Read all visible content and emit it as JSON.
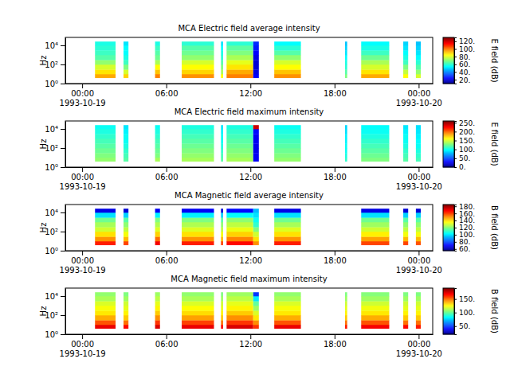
{
  "chart_data": [
    {
      "type": "heatmap",
      "title": "MCA  Electric field average intensity",
      "ylabel": "Hz",
      "log": "y",
      "xlim": [
        "1993-10-18T22:48",
        "1993-10-20T01:00"
      ],
      "xticks": [
        {
          "value": "1993-10-19T00:00",
          "label": "00:00\n1993-10-19"
        },
        {
          "value": "1993-10-19T06:00",
          "label": "06:00"
        },
        {
          "value": "1993-10-19T12:00",
          "label": "12:00"
        },
        {
          "value": "1993-10-19T18:00",
          "label": "18:00"
        },
        {
          "value": "1993-10-20T00:00",
          "label": "00:00\n1993-10-20"
        }
      ],
      "ylim": [
        1,
        68000
      ],
      "yticks": [
        {
          "value": 1,
          "label": "10⁰"
        },
        {
          "value": 100,
          "label": "10²"
        },
        {
          "value": 10000,
          "label": "10⁴"
        }
      ],
      "x_start": [
        "1993-10-19T00:55",
        "1993-10-19T02:57",
        "1993-10-19T05:12",
        "1993-10-19T07:06",
        "1993-10-19T09:54",
        "1993-10-19T10:18",
        "1993-10-19T12:12",
        "1993-10-19T13:42",
        "1993-10-19T18:45",
        "1993-10-19T19:54",
        "1993-10-19T22:54",
        "1993-10-19T23:48"
      ],
      "x_end": [
        "1993-10-19T02:23",
        "1993-10-19T03:18",
        "1993-10-19T05:33",
        "1993-10-19T09:24",
        "1993-10-19T10:03",
        "1993-10-19T12:12",
        "1993-10-19T12:36",
        "1993-10-19T15:36",
        "1993-10-19T18:54",
        "1993-10-19T21:54",
        "1993-10-19T23:15",
        "1993-10-20T00:09"
      ],
      "y_edges": [
        4,
        10,
        30,
        100,
        300,
        1000,
        3000,
        10000,
        25000
      ],
      "values": [
        [
          95,
          90,
          100,
          98,
          85,
          100,
          25,
          98,
          70,
          95,
          85,
          80
        ],
        [
          88,
          80,
          92,
          90,
          75,
          95,
          22,
          92,
          65,
          88,
          78,
          72
        ],
        [
          80,
          70,
          85,
          85,
          70,
          88,
          20,
          85,
          60,
          80,
          70,
          65
        ],
        [
          72,
          62,
          75,
          80,
          65,
          82,
          20,
          80,
          58,
          75,
          62,
          60
        ],
        [
          65,
          58,
          68,
          72,
          60,
          75,
          22,
          72,
          55,
          68,
          58,
          55
        ],
        [
          62,
          55,
          65,
          68,
          58,
          70,
          25,
          65,
          52,
          62,
          55,
          52
        ],
        [
          60,
          55,
          62,
          65,
          55,
          66,
          28,
          60,
          50,
          58,
          52,
          50
        ],
        [
          58,
          52,
          58,
          60,
          52,
          60,
          30,
          55,
          48,
          55,
          50,
          48
        ]
      ],
      "colorbar": {
        "label": "E field (dB)",
        "range": [
          10,
          130
        ],
        "ticks": [
          {
            "value": 20,
            "label": "20."
          },
          {
            "value": 40,
            "label": "40."
          },
          {
            "value": 60,
            "label": "60."
          },
          {
            "value": 80,
            "label": "80."
          },
          {
            "value": 100,
            "label": "100."
          },
          {
            "value": 120,
            "label": "120."
          }
        ]
      }
    },
    {
      "type": "heatmap",
      "title": "MCA  Electric field maximum intensity",
      "ylabel": "Hz",
      "log": "y",
      "xlim": [
        "1993-10-18T22:48",
        "1993-10-20T01:00"
      ],
      "xticks": [
        {
          "value": "1993-10-19T00:00",
          "label": "00:00\n1993-10-19"
        },
        {
          "value": "1993-10-19T06:00",
          "label": "06:00"
        },
        {
          "value": "1993-10-19T12:00",
          "label": "12:00"
        },
        {
          "value": "1993-10-19T18:00",
          "label": "18:00"
        },
        {
          "value": "1993-10-20T00:00",
          "label": "00:00\n1993-10-20"
        }
      ],
      "ylim": [
        1,
        68000
      ],
      "yticks": [
        {
          "value": 1,
          "label": "10⁰"
        },
        {
          "value": 100,
          "label": "10²"
        },
        {
          "value": 10000,
          "label": "10⁴"
        }
      ],
      "x_start": [
        "1993-10-19T00:55",
        "1993-10-19T02:57",
        "1993-10-19T05:12",
        "1993-10-19T07:06",
        "1993-10-19T09:54",
        "1993-10-19T10:18",
        "1993-10-19T12:12",
        "1993-10-19T13:42",
        "1993-10-19T18:45",
        "1993-10-19T19:54",
        "1993-10-19T22:54",
        "1993-10-19T23:48"
      ],
      "x_end": [
        "1993-10-19T02:23",
        "1993-10-19T03:18",
        "1993-10-19T05:33",
        "1993-10-19T09:24",
        "1993-10-19T10:03",
        "1993-10-19T12:12",
        "1993-10-19T12:36",
        "1993-10-19T15:36",
        "1993-10-19T18:54",
        "1993-10-19T21:54",
        "1993-10-19T23:15",
        "1993-10-20T00:09"
      ],
      "y_edges": [
        4,
        10,
        30,
        100,
        300,
        1000,
        3000,
        10000,
        25000
      ],
      "values": [
        [
          135,
          120,
          140,
          140,
          120,
          140,
          30,
          135,
          110,
          130,
          120,
          115
        ],
        [
          130,
          115,
          130,
          135,
          115,
          135,
          30,
          130,
          105,
          125,
          115,
          110
        ],
        [
          125,
          110,
          125,
          130,
          110,
          130,
          28,
          125,
          100,
          120,
          110,
          105
        ],
        [
          120,
          105,
          120,
          125,
          105,
          125,
          28,
          120,
          100,
          115,
          105,
          100
        ],
        [
          115,
          100,
          115,
          120,
          100,
          120,
          30,
          115,
          95,
          110,
          100,
          98
        ],
        [
          110,
          100,
          110,
          115,
          100,
          115,
          30,
          110,
          95,
          105,
          100,
          95
        ],
        [
          105,
          95,
          105,
          110,
          95,
          110,
          35,
          105,
          90,
          100,
          95,
          92
        ],
        [
          100,
          92,
          100,
          105,
          92,
          105,
          240,
          100,
          88,
          98,
          92,
          90
        ]
      ],
      "colorbar": {
        "label": "E field (dB)",
        "range": [
          0,
          260
        ],
        "ticks": [
          {
            "value": 0,
            "label": "0."
          },
          {
            "value": 50,
            "label": "50."
          },
          {
            "value": 100,
            "label": "100."
          },
          {
            "value": 150,
            "label": "150."
          },
          {
            "value": 200,
            "label": "200."
          },
          {
            "value": 250,
            "label": "250."
          }
        ]
      }
    },
    {
      "type": "heatmap",
      "title": "MCA  Magnetic field average intensity",
      "ylabel": "Hz",
      "log": "y",
      "xlim": [
        "1993-10-18T22:48",
        "1993-10-20T01:00"
      ],
      "xticks": [
        {
          "value": "1993-10-19T00:00",
          "label": "00:00\n1993-10-19"
        },
        {
          "value": "1993-10-19T06:00",
          "label": "06:00"
        },
        {
          "value": "1993-10-19T12:00",
          "label": "12:00"
        },
        {
          "value": "1993-10-19T18:00",
          "label": "18:00"
        },
        {
          "value": "1993-10-20T00:00",
          "label": "00:00\n1993-10-20"
        }
      ],
      "ylim": [
        1,
        68000
      ],
      "yticks": [
        {
          "value": 1,
          "label": "10⁰"
        },
        {
          "value": 100,
          "label": "10²"
        },
        {
          "value": 10000,
          "label": "10⁴"
        }
      ],
      "x_start": [
        "1993-10-19T00:55",
        "1993-10-19T02:57",
        "1993-10-19T05:12",
        "1993-10-19T07:06",
        "1993-10-19T09:54",
        "1993-10-19T10:18",
        "1993-10-19T12:12",
        "1993-10-19T13:42",
        "1993-10-19T18:45",
        "1993-10-19T19:54",
        "1993-10-19T22:54",
        "1993-10-19T23:48"
      ],
      "x_end": [
        "1993-10-19T02:23",
        "1993-10-19T03:18",
        "1993-10-19T05:33",
        "1993-10-19T09:24",
        "1993-10-19T10:03",
        "1993-10-19T12:12",
        "1993-10-19T12:36",
        "1993-10-19T15:36",
        "1993-10-19T18:54",
        "1993-10-19T21:54",
        "1993-10-19T23:15",
        "1993-10-20T00:09"
      ],
      "y_edges": [
        4,
        10,
        30,
        100,
        300,
        1000,
        3000,
        10000,
        25000
      ],
      "values": [
        [
          165,
          160,
          170,
          165,
          160,
          168,
          150,
          165,
          null,
          160,
          160,
          158
        ],
        [
          150,
          145,
          155,
          150,
          145,
          152,
          140,
          150,
          null,
          148,
          145,
          145
        ],
        [
          140,
          135,
          142,
          140,
          135,
          142,
          130,
          140,
          null,
          138,
          135,
          135
        ],
        [
          130,
          128,
          132,
          132,
          128,
          134,
          120,
          132,
          null,
          130,
          128,
          128
        ],
        [
          125,
          122,
          126,
          126,
          122,
          128,
          110,
          125,
          null,
          124,
          122,
          122
        ],
        [
          118,
          115,
          120,
          120,
          115,
          122,
          105,
          118,
          null,
          118,
          115,
          115
        ],
        [
          100,
          98,
          102,
          102,
          98,
          104,
          100,
          100,
          null,
          100,
          98,
          98
        ],
        [
          68,
          66,
          70,
          70,
          66,
          72,
          95,
          68,
          null,
          68,
          66,
          66
        ]
      ],
      "colorbar": {
        "label": "B field (dB)",
        "range": [
          55,
          185
        ],
        "ticks": [
          {
            "value": 60,
            "label": "60."
          },
          {
            "value": 80,
            "label": "80."
          },
          {
            "value": 100,
            "label": "100."
          },
          {
            "value": 120,
            "label": "120."
          },
          {
            "value": 140,
            "label": "140."
          },
          {
            "value": 160,
            "label": "160."
          },
          {
            "value": 180,
            "label": "180."
          }
        ]
      }
    },
    {
      "type": "heatmap",
      "title": "MCA  Magnetic field maximum intensity",
      "ylabel": "Hz",
      "log": "y",
      "xlim": [
        "1993-10-18T22:48",
        "1993-10-20T01:00"
      ],
      "xticks": [
        {
          "value": "1993-10-19T00:00",
          "label": "00:00\n1993-10-19"
        },
        {
          "value": "1993-10-19T06:00",
          "label": "06:00"
        },
        {
          "value": "1993-10-19T12:00",
          "label": "12:00"
        },
        {
          "value": "1993-10-19T18:00",
          "label": "18:00"
        },
        {
          "value": "1993-10-20T00:00",
          "label": "00:00\n1993-10-20"
        }
      ],
      "ylim": [
        1,
        68000
      ],
      "yticks": [
        {
          "value": 1,
          "label": "10⁰"
        },
        {
          "value": 100,
          "label": "10²"
        },
        {
          "value": 10000,
          "label": "10⁴"
        }
      ],
      "x_start": [
        "1993-10-19T00:55",
        "1993-10-19T02:57",
        "1993-10-19T05:12",
        "1993-10-19T07:06",
        "1993-10-19T09:54",
        "1993-10-19T10:18",
        "1993-10-19T12:12",
        "1993-10-19T13:42",
        "1993-10-19T18:45",
        "1993-10-19T19:54",
        "1993-10-19T22:54",
        "1993-10-19T23:48"
      ],
      "x_end": [
        "1993-10-19T02:23",
        "1993-10-19T03:18",
        "1993-10-19T05:33",
        "1993-10-19T09:24",
        "1993-10-19T10:03",
        "1993-10-19T12:12",
        "1993-10-19T12:36",
        "1993-10-19T15:36",
        "1993-10-19T18:54",
        "1993-10-19T21:54",
        "1993-10-19T23:15",
        "1993-10-20T00:09"
      ],
      "y_edges": [
        4,
        10,
        30,
        100,
        300,
        1000,
        3000,
        10000,
        25000
      ],
      "values": [
        [
          172,
          168,
          175,
          172,
          168,
          175,
          160,
          172,
          165,
          170,
          168,
          165
        ],
        [
          155,
          150,
          160,
          158,
          150,
          160,
          145,
          155,
          150,
          155,
          150,
          150
        ],
        [
          140,
          135,
          145,
          142,
          135,
          145,
          130,
          140,
          135,
          140,
          135,
          135
        ],
        [
          130,
          128,
          135,
          132,
          128,
          135,
          120,
          130,
          128,
          130,
          128,
          128
        ],
        [
          125,
          122,
          128,
          126,
          122,
          128,
          110,
          125,
          122,
          124,
          122,
          122
        ],
        [
          120,
          118,
          122,
          120,
          118,
          122,
          100,
          120,
          118,
          118,
          118,
          118
        ],
        [
          112,
          110,
          115,
          112,
          110,
          115,
          80,
          112,
          110,
          110,
          110,
          110
        ],
        [
          108,
          105,
          110,
          108,
          105,
          110,
          50,
          108,
          105,
          106,
          105,
          105
        ]
      ],
      "colorbar": {
        "label": "B field (dB)",
        "range": [
          20,
          190
        ],
        "ticks": [
          {
            "value": 50,
            "label": "50."
          },
          {
            "value": 100,
            "label": "100."
          },
          {
            "value": 150,
            "label": "150."
          }
        ]
      }
    }
  ]
}
